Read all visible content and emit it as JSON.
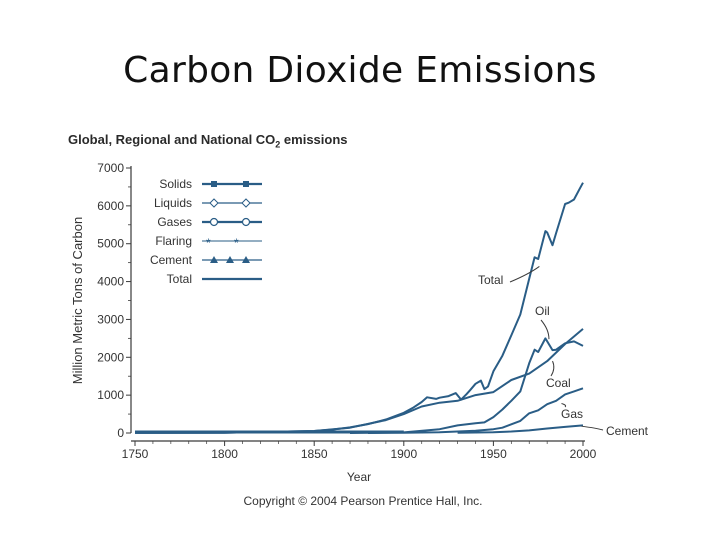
{
  "slide": {
    "title": "Carbon Dioxide Emissions"
  },
  "chart": {
    "title_before": "Global, Regional and National CO",
    "title_sub": "2",
    "title_after": " emissions",
    "copyright": "Copyright © 2004 Pearson Prentice Hall, Inc."
  },
  "colors": {
    "line": "#2a5d86",
    "axis": "#3a3a3a",
    "text": "#333333"
  },
  "chart_data": {
    "type": "line",
    "xlabel": "Year",
    "ylabel": "Million Metric Tons of Carbon",
    "xlim": [
      1750,
      2000
    ],
    "ylim": [
      0,
      7000
    ],
    "xticks": [
      1750,
      1800,
      1850,
      1900,
      1950,
      2000
    ],
    "yticks": [
      0,
      1000,
      2000,
      3000,
      4000,
      5000,
      6000,
      7000
    ],
    "legend_position": "top-left",
    "legend": [
      "Solids",
      "Liquids",
      "Gases",
      "Flaring",
      "Cement",
      "Total"
    ],
    "annotations": [
      {
        "text": "Total",
        "series": "Total",
        "x": 1979,
        "y": 4000
      },
      {
        "text": "Oil",
        "series": "Oil",
        "x": 1982,
        "y": 2500
      },
      {
        "text": "Coal",
        "series": "Coal",
        "x": 1985,
        "y": 1700
      },
      {
        "text": "Gas",
        "series": "Gas",
        "x": 1985,
        "y": 600
      },
      {
        "text": "Cement",
        "series": "Cement",
        "x": 2000,
        "y": 110
      }
    ],
    "series": [
      {
        "name": "Total",
        "x": [
          1750,
          1800,
          1850,
          1860,
          1870,
          1880,
          1890,
          1900,
          1905,
          1910,
          1913,
          1918,
          1920,
          1925,
          1929,
          1932,
          1935,
          1937,
          1940,
          1943,
          1945,
          1947,
          1950,
          1955,
          1960,
          1965,
          1970,
          1973,
          1975,
          1979,
          1980,
          1983,
          1985,
          1990,
          1992,
          1995,
          1998,
          2000
        ],
        "y": [
          3,
          8,
          54,
          91,
          147,
          236,
          356,
          534,
          663,
          819,
          943,
          900,
          932,
          975,
          1053,
          881,
          1025,
          1131,
          1299,
          1385,
          1160,
          1228,
          1630,
          2043,
          2577,
          3130,
          4076,
          4641,
          4596,
          5332,
          5296,
          4960,
          5280,
          6048,
          6084,
          6168,
          6437,
          6611
        ]
      },
      {
        "name": "Oil",
        "x": [
          1870,
          1900,
          1920,
          1930,
          1940,
          1945,
          1950,
          1955,
          1960,
          1965,
          1970,
          1973,
          1975,
          1979,
          1983,
          1985,
          1990,
          1995,
          2000
        ],
        "y": [
          1,
          16,
          100,
          200,
          260,
          280,
          420,
          620,
          850,
          1100,
          1840,
          2200,
          2140,
          2500,
          2190,
          2200,
          2370,
          2420,
          2300
        ]
      },
      {
        "name": "Coal",
        "x": [
          1750,
          1800,
          1850,
          1870,
          1890,
          1900,
          1910,
          1920,
          1930,
          1940,
          1950,
          1960,
          1970,
          1980,
          1990,
          2000
        ],
        "y": [
          3,
          8,
          54,
          140,
          340,
          500,
          700,
          800,
          850,
          1000,
          1080,
          1400,
          1570,
          1900,
          2350,
          2750
        ]
      },
      {
        "name": "Gas",
        "x": [
          1880,
          1900,
          1920,
          1930,
          1940,
          1950,
          1955,
          1960,
          1965,
          1970,
          1975,
          1980,
          1985,
          1990,
          1995,
          2000
        ],
        "y": [
          1,
          5,
          20,
          40,
          60,
          100,
          140,
          230,
          320,
          520,
          600,
          760,
          850,
          1020,
          1100,
          1180
        ]
      },
      {
        "name": "Cement",
        "x": [
          1930,
          1950,
          1960,
          1970,
          1980,
          1990,
          2000
        ],
        "y": [
          5,
          20,
          40,
          70,
          120,
          160,
          200
        ]
      }
    ]
  }
}
